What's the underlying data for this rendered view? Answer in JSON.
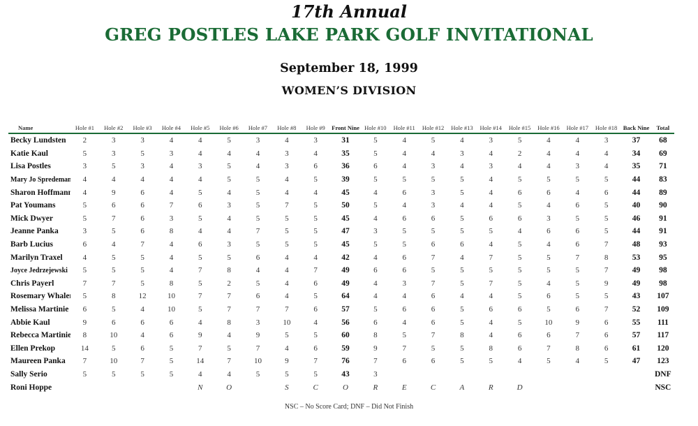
{
  "header": {
    "edition": "17th Annual",
    "title": "GREG POSTLES LAKE PARK GOLF INVITATIONAL",
    "date": "September 18, 1999",
    "division": "WOMEN’S DIVISION"
  },
  "columns": [
    "Name",
    "Hole #1",
    "Hole #2",
    "Hole #3",
    "Hole #4",
    "Hole #5",
    "Hole #6",
    "Hole #7",
    "Hole #8",
    "Hole #9",
    "Front Nine",
    "Hole #10",
    "Hole #11",
    "Hole #12",
    "Hole #13",
    "Hole #14",
    "Hole #15",
    "Hole #16",
    "Hole #17",
    "Hole #18",
    "Back Nine",
    "Total"
  ],
  "rows": [
    [
      "Becky Lundsten",
      "2",
      "3",
      "3",
      "4",
      "4",
      "5",
      "3",
      "4",
      "3",
      "31",
      "5",
      "4",
      "5",
      "4",
      "3",
      "5",
      "4",
      "4",
      "3",
      "37",
      "68"
    ],
    [
      "Katie Kaul",
      "5",
      "3",
      "5",
      "3",
      "4",
      "4",
      "4",
      "3",
      "4",
      "35",
      "5",
      "4",
      "4",
      "3",
      "4",
      "2",
      "4",
      "4",
      "4",
      "34",
      "69"
    ],
    [
      "Lisa Postles",
      "3",
      "5",
      "3",
      "4",
      "3",
      "5",
      "4",
      "3",
      "6",
      "36",
      "6",
      "4",
      "3",
      "4",
      "3",
      "4",
      "4",
      "3",
      "4",
      "35",
      "71"
    ],
    [
      "Mary Jo Spredemann",
      "4",
      "4",
      "4",
      "4",
      "4",
      "5",
      "5",
      "4",
      "5",
      "39",
      "5",
      "5",
      "5",
      "5",
      "4",
      "5",
      "5",
      "5",
      "5",
      "44",
      "83"
    ],
    [
      "Sharon Hoffmann",
      "4",
      "9",
      "6",
      "4",
      "5",
      "4",
      "5",
      "4",
      "4",
      "45",
      "4",
      "6",
      "3",
      "5",
      "4",
      "6",
      "6",
      "4",
      "6",
      "44",
      "89"
    ],
    [
      "Pat Youmans",
      "5",
      "6",
      "6",
      "7",
      "6",
      "3",
      "5",
      "7",
      "5",
      "50",
      "5",
      "4",
      "3",
      "4",
      "4",
      "5",
      "4",
      "6",
      "5",
      "40",
      "90"
    ],
    [
      "Mick Dwyer",
      "5",
      "7",
      "6",
      "3",
      "5",
      "4",
      "5",
      "5",
      "5",
      "45",
      "4",
      "6",
      "6",
      "5",
      "6",
      "6",
      "3",
      "5",
      "5",
      "46",
      "91"
    ],
    [
      "Jeanne Panka",
      "3",
      "5",
      "6",
      "8",
      "4",
      "4",
      "7",
      "5",
      "5",
      "47",
      "3",
      "5",
      "5",
      "5",
      "5",
      "4",
      "6",
      "6",
      "5",
      "44",
      "91"
    ],
    [
      "Barb Lucius",
      "6",
      "4",
      "7",
      "4",
      "6",
      "3",
      "5",
      "5",
      "5",
      "45",
      "5",
      "5",
      "6",
      "6",
      "4",
      "5",
      "4",
      "6",
      "7",
      "48",
      "93"
    ],
    [
      "Marilyn Traxel",
      "4",
      "5",
      "5",
      "4",
      "5",
      "5",
      "6",
      "4",
      "4",
      "42",
      "4",
      "6",
      "7",
      "4",
      "7",
      "5",
      "5",
      "7",
      "8",
      "53",
      "95"
    ],
    [
      "Joyce Jedrzejewski",
      "5",
      "5",
      "5",
      "4",
      "7",
      "8",
      "4",
      "4",
      "7",
      "49",
      "6",
      "6",
      "5",
      "5",
      "5",
      "5",
      "5",
      "5",
      "7",
      "49",
      "98"
    ],
    [
      "Chris Payerl",
      "7",
      "7",
      "5",
      "8",
      "5",
      "2",
      "5",
      "4",
      "6",
      "49",
      "4",
      "3",
      "7",
      "5",
      "7",
      "5",
      "4",
      "5",
      "9",
      "49",
      "98"
    ],
    [
      "Rosemary Whalen",
      "5",
      "8",
      "12",
      "10",
      "7",
      "7",
      "6",
      "4",
      "5",
      "64",
      "4",
      "4",
      "6",
      "4",
      "4",
      "5",
      "6",
      "5",
      "5",
      "43",
      "107"
    ],
    [
      "Melissa Martinie",
      "6",
      "5",
      "4",
      "10",
      "5",
      "7",
      "7",
      "7",
      "6",
      "57",
      "5",
      "6",
      "6",
      "5",
      "6",
      "6",
      "5",
      "6",
      "7",
      "52",
      "109"
    ],
    [
      "Abbie Kaul",
      "9",
      "6",
      "6",
      "6",
      "4",
      "8",
      "3",
      "10",
      "4",
      "56",
      "6",
      "4",
      "6",
      "5",
      "4",
      "5",
      "10",
      "9",
      "6",
      "55",
      "111"
    ],
    [
      "Rebecca Martinie",
      "8",
      "10",
      "4",
      "6",
      "9",
      "4",
      "9",
      "5",
      "5",
      "60",
      "8",
      "5",
      "7",
      "8",
      "4",
      "6",
      "6",
      "7",
      "6",
      "57",
      "117"
    ],
    [
      "Ellen Prekop",
      "14",
      "5",
      "6",
      "5",
      "7",
      "5",
      "7",
      "4",
      "6",
      "59",
      "9",
      "7",
      "5",
      "5",
      "8",
      "6",
      "7",
      "8",
      "6",
      "61",
      "120"
    ],
    [
      "Maureen Panka",
      "7",
      "10",
      "7",
      "5",
      "14",
      "7",
      "10",
      "9",
      "7",
      "76",
      "7",
      "6",
      "6",
      "5",
      "5",
      "4",
      "5",
      "4",
      "5",
      "47",
      "123"
    ],
    [
      "Sally Serio",
      "5",
      "5",
      "5",
      "5",
      "4",
      "4",
      "5",
      "5",
      "5",
      "43",
      "3",
      "",
      "",
      "",
      "",
      "",
      "",
      "",
      "",
      "",
      "DNF"
    ],
    [
      "Roni Hoppe",
      "",
      "",
      "",
      "",
      "N",
      "O",
      "",
      "S",
      "C",
      "O",
      "R",
      "E",
      "C",
      "A",
      "R",
      "D",
      "",
      "",
      "",
      "",
      "NSC"
    ]
  ],
  "footnote": "NSC – No Score Card; DNF – Did Not Finish",
  "colors": {
    "accent": "#1a6b35"
  }
}
